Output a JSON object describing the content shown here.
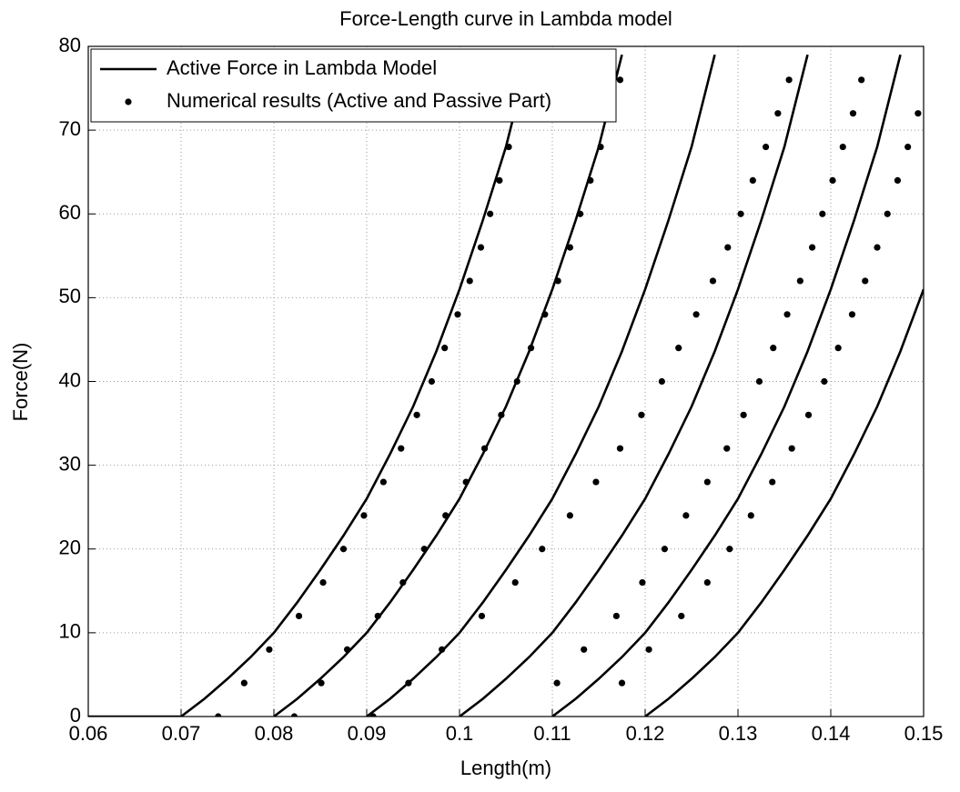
{
  "chart_data": {
    "type": "line",
    "title": "Force-Length curve in Lambda model",
    "x_label": "Length(m)",
    "y_label": "Force(N)",
    "xlim": [
      0.06,
      0.15
    ],
    "ylim": [
      0,
      80
    ],
    "xticks": [
      0.06,
      0.07,
      0.08,
      0.09,
      0.1,
      0.11,
      0.12,
      0.13,
      0.14,
      0.15
    ],
    "yticks": [
      0,
      10,
      20,
      30,
      40,
      50,
      60,
      70,
      80
    ],
    "grid": true,
    "legend": {
      "location": "northwest",
      "entries": [
        {
          "label": "Active Force in Lambda Model",
          "style": "line"
        },
        {
          "label": "Numerical results (Active and Passive Part)",
          "style": "dots"
        }
      ]
    },
    "series": [
      {
        "style": "line",
        "color": "#000000",
        "x": [
          0.06,
          0.07,
          0.0725,
          0.075,
          0.0775,
          0.08,
          0.0825,
          0.085,
          0.0875,
          0.09,
          0.0925,
          0.095,
          0.0975,
          0.1,
          0.1025,
          0.105,
          0.1075
        ],
        "values": [
          0,
          0,
          2.1,
          4.5,
          7.1,
          10,
          13.6,
          17.5,
          21.6,
          26,
          31.3,
          37,
          43.6,
          51,
          59.2,
          68,
          79
        ]
      },
      {
        "style": "line",
        "color": "#000000",
        "x": [
          0.08,
          0.0825,
          0.085,
          0.0875,
          0.09,
          0.0925,
          0.095,
          0.0975,
          0.1,
          0.1025,
          0.105,
          0.1075,
          0.11,
          0.1125,
          0.115,
          0.1175
        ],
        "values": [
          0,
          2.1,
          4.5,
          7.1,
          10,
          13.6,
          17.5,
          21.6,
          26,
          31.3,
          37,
          43.6,
          51,
          59.2,
          68,
          79
        ]
      },
      {
        "style": "line",
        "color": "#000000",
        "x": [
          0.09,
          0.0925,
          0.095,
          0.0975,
          0.1,
          0.1025,
          0.105,
          0.1075,
          0.11,
          0.1125,
          0.115,
          0.1175,
          0.12,
          0.1225,
          0.125,
          0.1275
        ],
        "values": [
          0,
          2.1,
          4.5,
          7.1,
          10,
          13.6,
          17.5,
          21.6,
          26,
          31.3,
          37,
          43.6,
          51,
          59.2,
          68,
          79
        ]
      },
      {
        "style": "line",
        "color": "#000000",
        "x": [
          0.1,
          0.1025,
          0.105,
          0.1075,
          0.11,
          0.1125,
          0.115,
          0.1175,
          0.12,
          0.1225,
          0.125,
          0.1275,
          0.13,
          0.1325,
          0.135,
          0.1375
        ],
        "values": [
          0,
          2.1,
          4.5,
          7.1,
          10,
          13.6,
          17.5,
          21.6,
          26,
          31.3,
          37,
          43.6,
          51,
          59.2,
          68,
          79
        ]
      },
      {
        "style": "line",
        "color": "#000000",
        "x": [
          0.11,
          0.1125,
          0.115,
          0.1175,
          0.12,
          0.1225,
          0.125,
          0.1275,
          0.13,
          0.1325,
          0.135,
          0.1375,
          0.14,
          0.1425,
          0.145,
          0.1475
        ],
        "values": [
          0,
          2.1,
          4.5,
          7.1,
          10,
          13.6,
          17.5,
          21.6,
          26,
          31.3,
          37,
          43.6,
          51,
          59.2,
          68,
          79
        ]
      },
      {
        "style": "line",
        "color": "#000000",
        "x": [
          0.12,
          0.1225,
          0.125,
          0.1275,
          0.13,
          0.1325,
          0.135,
          0.1375,
          0.14,
          0.1425,
          0.145,
          0.1475,
          0.15
        ],
        "values": [
          0,
          2.1,
          4.5,
          7.1,
          10,
          13.6,
          17.5,
          21.6,
          26,
          31.3,
          37,
          43.6,
          51
        ]
      },
      {
        "style": "dots",
        "color": "#000000",
        "x": [
          0.074,
          0.0768,
          0.0795,
          0.0827,
          0.0853,
          0.0875,
          0.0897,
          0.0918,
          0.0937,
          0.0954,
          0.097,
          0.0984,
          0.0998,
          0.1011,
          0.1023,
          0.1033,
          0.1043,
          0.1053,
          0.1063,
          0.1072
        ],
        "values": [
          0,
          4,
          8,
          12,
          16,
          20,
          24,
          28,
          32,
          36,
          40,
          44,
          48,
          52,
          56,
          60,
          64,
          68,
          72,
          76
        ]
      },
      {
        "style": "dots",
        "color": "#000000",
        "x": [
          0.0822,
          0.0851,
          0.0879,
          0.0912,
          0.0939,
          0.0962,
          0.0985,
          0.1007,
          0.1027,
          0.1045,
          0.1062,
          0.1077,
          0.1092,
          0.1106,
          0.1119,
          0.113,
          0.1141,
          0.1152,
          0.1163,
          0.1173
        ],
        "values": [
          0,
          4,
          8,
          12,
          16,
          20,
          24,
          28,
          32,
          36,
          40,
          44,
          48,
          52,
          56,
          60,
          64,
          68,
          72,
          76
        ]
      },
      {
        "style": "dots",
        "color": "#000000",
        "x": [
          0.0907,
          0.0945,
          0.0981,
          0.1024,
          0.106,
          0.1089,
          0.1119,
          0.1147,
          0.1173,
          0.1196,
          0.1218,
          0.1236,
          0.1255,
          0.1273,
          0.1289,
          0.1303,
          0.1316,
          0.133,
          0.1343,
          0.1355
        ],
        "values": [
          0,
          4,
          8,
          12,
          16,
          20,
          24,
          28,
          32,
          36,
          40,
          44,
          48,
          52,
          56,
          60,
          64,
          68,
          72,
          76
        ]
      },
      {
        "style": "dots",
        "color": "#000000",
        "x": [
          0.1105,
          0.1134,
          0.1169,
          0.1197,
          0.1221,
          0.1244,
          0.1267,
          0.1288,
          0.1306,
          0.1323,
          0.1338,
          0.1353,
          0.1367,
          0.138,
          0.1391,
          0.1402,
          0.1413,
          0.1424,
          0.1433
        ],
        "values": [
          4,
          8,
          12,
          16,
          20,
          24,
          28,
          32,
          36,
          40,
          44,
          48,
          52,
          56,
          60,
          64,
          68,
          72,
          76
        ]
      },
      {
        "style": "dots",
        "color": "#000000",
        "x": [
          0.1175,
          0.1204,
          0.1239,
          0.1267,
          0.1291,
          0.1314,
          0.1337,
          0.1358,
          0.1376,
          0.1393,
          0.1408,
          0.1423,
          0.1437,
          0.145,
          0.1461,
          0.1472,
          0.1483,
          0.1494
        ],
        "values": [
          4,
          8,
          12,
          16,
          20,
          24,
          28,
          32,
          36,
          40,
          44,
          48,
          52,
          56,
          60,
          64,
          68,
          72
        ]
      }
    ]
  }
}
